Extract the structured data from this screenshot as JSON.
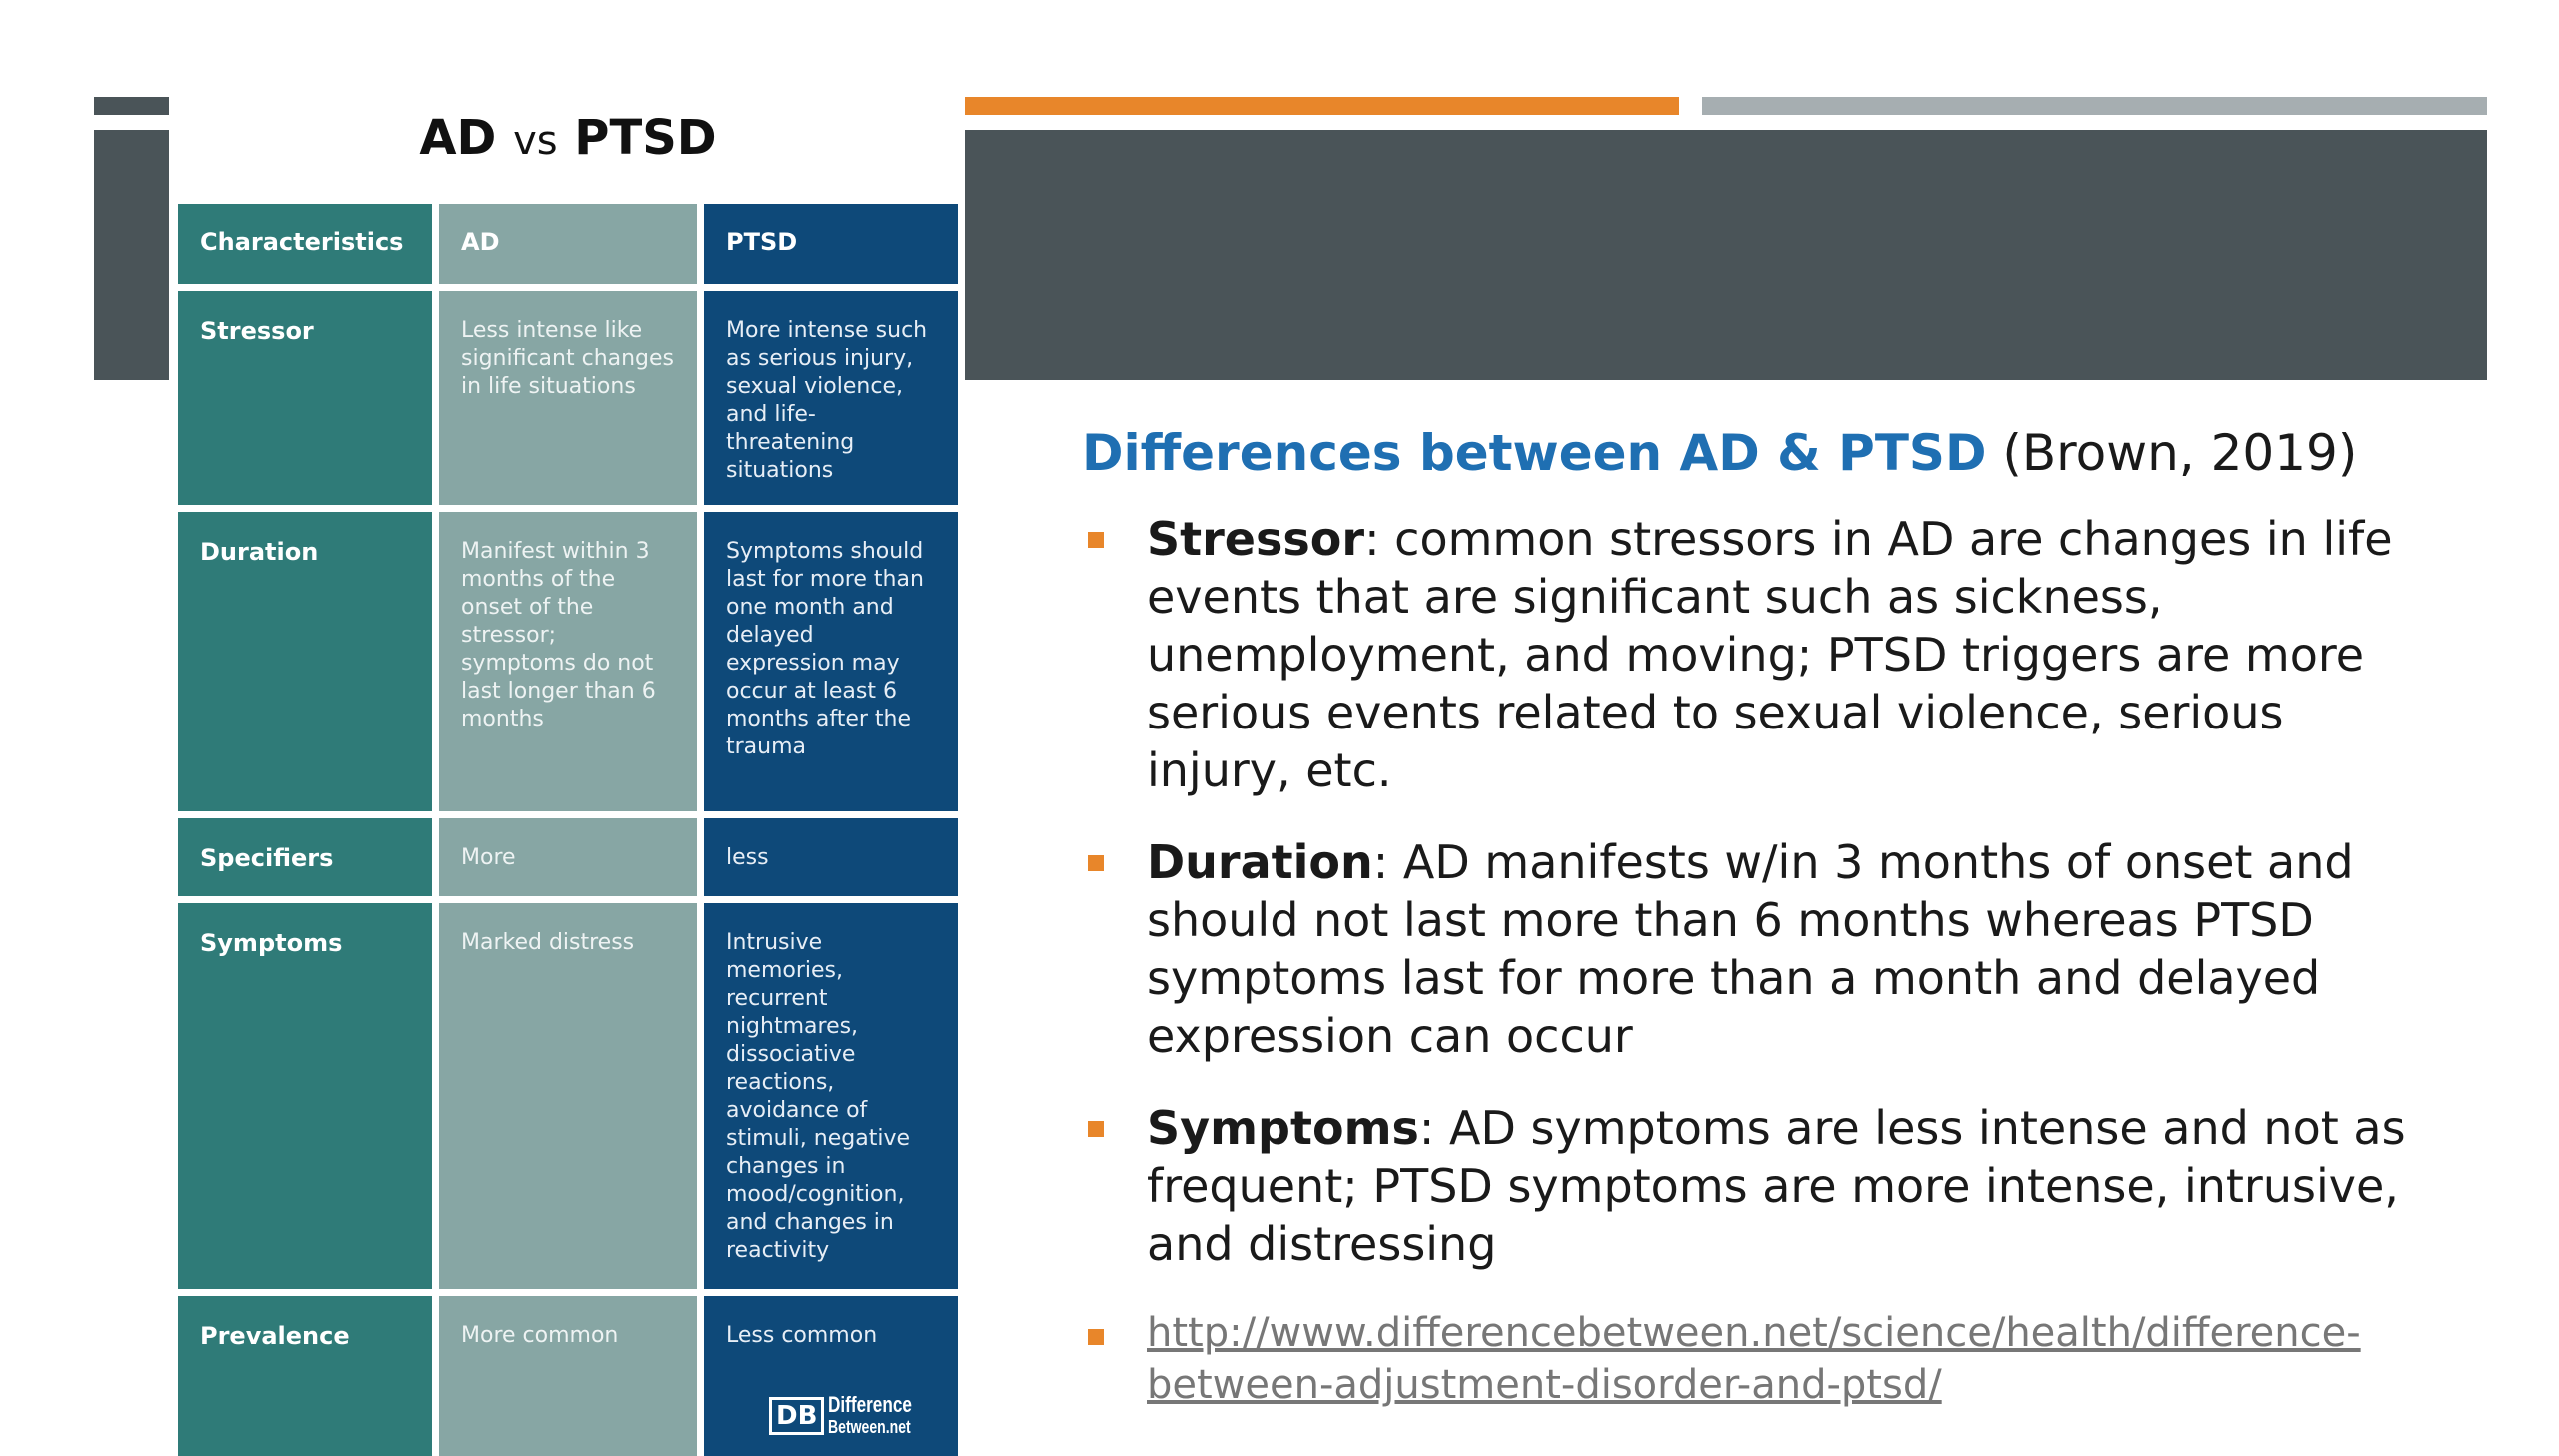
{
  "table": {
    "title_left": "AD",
    "title_vs": "vs",
    "title_right": "PTSD",
    "headers": [
      "Characteristics",
      "AD",
      "PTSD"
    ],
    "rows": [
      {
        "characteristic": "Stressor",
        "ad": "Less intense like significant changes in life situations",
        "ptsd": "More intense such as serious injury, sexual violence, and life-threatening situations"
      },
      {
        "characteristic": "Duration",
        "ad": "Manifest within 3 months of the onset of the stressor; symptoms do not last longer than 6 months",
        "ptsd": "Symptoms should last for more than one month and delayed expression may occur at least 6 months after the trauma"
      },
      {
        "characteristic": "Specifiers",
        "ad": "More",
        "ptsd": "less"
      },
      {
        "characteristic": "Symptoms",
        "ad": "Marked distress",
        "ptsd": "Intrusive memories, recurrent nightmares, dissociative reactions, avoidance of stimuli, negative changes in mood/cognition, and changes in reactivity"
      },
      {
        "characteristic": "Prevalence",
        "ad": "More common",
        "ptsd": "Less common"
      }
    ],
    "logo_mark": "DB",
    "logo_line1": "Difference",
    "logo_line2": "Between.net"
  },
  "content": {
    "title_highlight": "Differences between AD & PTSD",
    "title_citation": " (Brown, 2019)",
    "bullets": [
      {
        "term": "Stressor",
        "text": ": common stressors in AD are changes in life events that are significant such as sickness, unemployment, and moving; PTSD triggers are more serious events related to sexual violence, serious injury, etc."
      },
      {
        "term": "Duration",
        "text": ":  AD manifests w/in 3 months of onset and should not last more than 6 months whereas PTSD symptoms last for more than a month and delayed expression can occur"
      },
      {
        "term": "Symptoms",
        "text": ": AD symptoms are less intense and not as frequent; PTSD symptoms are more intense, intrusive, and distressing"
      }
    ],
    "link": "http://www.differencebetween.net/science/health/difference-between-adjustment-disorder-and-ptsd/"
  },
  "colors": {
    "accent_orange": "#e8862a",
    "title_blue": "#1f6fb2",
    "header_gray": "#4a5458",
    "table_teal": "#2f7b78",
    "table_sage": "#87a6a4",
    "table_navy": "#0e4979"
  }
}
